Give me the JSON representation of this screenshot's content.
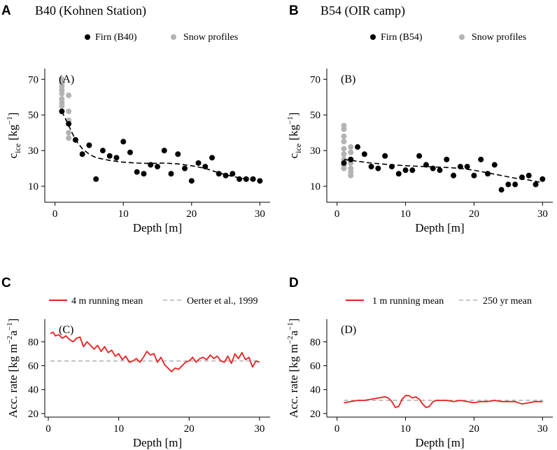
{
  "chart_data": [
    {
      "panel_letter": "A",
      "title": "B40 (Kohnen Station)",
      "panel_tag": "(A)",
      "type": "scatter",
      "legend": [
        {
          "label": "Firn (B40)",
          "color": "#000000"
        },
        {
          "label": "Snow profiles",
          "color": "#b3b3b3"
        }
      ],
      "xlabel": "Depth [m]",
      "ylabel": "c",
      "ylabel_sub": "ice",
      "ylabel_unit": "[kg",
      "ylabel_sup": "−1",
      "ylabel_close": "]",
      "xlim": [
        -1.5,
        31.5
      ],
      "ylim": [
        1,
        76
      ],
      "xticks": [
        0,
        10,
        20,
        30
      ],
      "yticks": [
        10,
        30,
        50,
        70
      ],
      "series": [
        {
          "name": "Snow profiles",
          "color": "#b3b3b3",
          "x": [
            1,
            1,
            1,
            1,
            1,
            1,
            1,
            1,
            2,
            2,
            2,
            2,
            2
          ],
          "y": [
            70,
            68,
            66,
            64,
            62,
            59,
            57,
            55,
            61,
            52,
            47,
            40,
            37
          ]
        },
        {
          "name": "Firn (B40)",
          "color": "#000000",
          "x": [
            1,
            2,
            3,
            4,
            5,
            6,
            7,
            8,
            9,
            10,
            11,
            12,
            13,
            14,
            15,
            16,
            17,
            18,
            19,
            20,
            21,
            22,
            23,
            24,
            25,
            26,
            27,
            28,
            29,
            30
          ],
          "y": [
            52,
            45,
            36,
            28,
            33,
            14,
            30,
            27,
            26,
            35,
            29,
            18,
            17,
            22,
            21,
            30,
            17,
            28,
            20,
            13,
            23,
            21,
            26,
            17,
            16,
            17,
            14,
            14,
            14,
            13
          ]
        },
        {
          "name": "Fit",
          "style": "dashed",
          "color": "#000000",
          "x": [
            1,
            2,
            3,
            4,
            5,
            6,
            8,
            10,
            12,
            14,
            16,
            18,
            20,
            22,
            24,
            26,
            28,
            30
          ],
          "y": [
            52,
            44,
            36,
            31,
            28,
            26,
            24.5,
            23.5,
            23,
            22.8,
            23,
            22.5,
            21.5,
            20,
            17.5,
            15.5,
            14,
            13
          ]
        }
      ]
    },
    {
      "panel_letter": "B",
      "title": "B54 (OIR camp)",
      "panel_tag": "(B)",
      "type": "scatter",
      "legend": [
        {
          "label": "Firn (B54)",
          "color": "#000000"
        },
        {
          "label": "Snow profiles",
          "color": "#b3b3b3"
        }
      ],
      "xlabel": "Depth [m]",
      "ylabel": "c",
      "ylabel_sub": "ice",
      "ylabel_unit": "[kg",
      "ylabel_sup": "−1",
      "ylabel_close": "]",
      "xlim": [
        -1.5,
        31.5
      ],
      "ylim": [
        1,
        76
      ],
      "xticks": [
        0,
        10,
        20,
        30
      ],
      "yticks": [
        10,
        30,
        50,
        70
      ],
      "series": [
        {
          "name": "Snow profiles",
          "color": "#b3b3b3",
          "x": [
            1,
            1,
            1,
            1,
            1,
            1,
            1,
            1,
            1,
            2,
            2,
            2,
            2,
            2,
            2,
            2
          ],
          "y": [
            44,
            42,
            38,
            35,
            31,
            28,
            25,
            22,
            20,
            32,
            29,
            25,
            23,
            20,
            18,
            16
          ]
        },
        {
          "name": "Firn (B54)",
          "color": "#000000",
          "x": [
            1,
            2,
            3,
            4,
            5,
            6,
            7,
            8,
            9,
            10,
            11,
            12,
            13,
            14,
            15,
            16,
            17,
            18,
            19,
            20,
            21,
            22,
            23,
            24,
            25,
            26,
            27,
            28,
            29,
            30
          ],
          "y": [
            23,
            25,
            32,
            28,
            21,
            20,
            27,
            21,
            17,
            19,
            19,
            27,
            22,
            20,
            19,
            25,
            16,
            21,
            21,
            16,
            25,
            17,
            22,
            8,
            11,
            11,
            15,
            16,
            11,
            14
          ]
        },
        {
          "name": "Fit",
          "style": "dashed",
          "color": "#000000",
          "x": [
            1,
            3,
            5,
            8,
            10,
            13,
            16,
            18,
            20,
            22,
            24,
            26,
            28,
            30
          ],
          "y": [
            25,
            24,
            23,
            22,
            21.5,
            21,
            20.5,
            20,
            19,
            17.5,
            16,
            14.5,
            13.5,
            12
          ]
        }
      ]
    },
    {
      "panel_letter": "C",
      "panel_tag": "(C)",
      "type": "line",
      "legend": [
        {
          "label": "4 m running mean",
          "color": "#ee1c1c",
          "style": "solid"
        },
        {
          "label": "Oerter et al., 1999",
          "color": "#b3b3b3",
          "style": "dashed"
        }
      ],
      "xlabel": "Depth [m]",
      "ylabel": "Acc. rate [kg m",
      "ylabel_sup1": "−2",
      "ylabel_mid": "a",
      "ylabel_sup2": "−1",
      "ylabel_close": "]",
      "xlim": [
        -0.5,
        31.5
      ],
      "ylim": [
        17,
        99
      ],
      "xticks": [
        0,
        10,
        20,
        30
      ],
      "yticks": [
        20,
        40,
        60,
        80
      ],
      "reference_line": 64,
      "series": [
        {
          "name": "4 m running mean",
          "color": "#ee1c1c",
          "x": [
            0.3,
            0.7,
            1.0,
            1.5,
            2.0,
            2.5,
            3.0,
            3.5,
            4.0,
            4.5,
            5.0,
            5.5,
            6.0,
            6.5,
            7.0,
            7.5,
            8.0,
            8.5,
            9.0,
            9.5,
            10.0,
            10.5,
            11.0,
            11.5,
            12.0,
            12.5,
            13.0,
            13.5,
            14.0,
            14.5,
            15.0,
            15.5,
            16.0,
            16.5,
            17.0,
            17.5,
            18.0,
            18.5,
            19.0,
            19.5,
            20.0,
            20.5,
            21.0,
            21.5,
            22.0,
            22.5,
            23.0,
            23.5,
            24.0,
            24.5,
            25.0,
            25.5,
            26.0,
            26.5,
            27.0,
            27.5,
            28.0,
            28.5,
            29.0,
            29.5,
            30.0
          ],
          "y": [
            87,
            88,
            85,
            86,
            83,
            85,
            82,
            80,
            83,
            84,
            76,
            80,
            77,
            74,
            77,
            72,
            76,
            71,
            73,
            68,
            70,
            65,
            68,
            63,
            64,
            66,
            63,
            67,
            72,
            69,
            70,
            63,
            67,
            61,
            58,
            55,
            58,
            57,
            60,
            63,
            64,
            67,
            63,
            66,
            67,
            65,
            69,
            66,
            68,
            64,
            63,
            68,
            62,
            70,
            66,
            71,
            65,
            67,
            59,
            64,
            63
          ]
        }
      ]
    },
    {
      "panel_letter": "D",
      "panel_tag": "(D)",
      "type": "line",
      "legend": [
        {
          "label": "1 m running mean",
          "color": "#ee1c1c",
          "style": "solid"
        },
        {
          "label": "250 yr mean",
          "color": "#b3b3b3",
          "style": "dashed"
        }
      ],
      "xlabel": "Depth [m]",
      "ylabel": "Acc. rate [kg m",
      "ylabel_sup1": "−2",
      "ylabel_mid": "a",
      "ylabel_sup2": "−1",
      "ylabel_close": "]",
      "xlim": [
        -1.5,
        31.5
      ],
      "ylim": [
        17,
        99
      ],
      "xticks": [
        0,
        10,
        20,
        30
      ],
      "yticks": [
        20,
        40,
        60,
        80
      ],
      "reference_line": 31,
      "series": [
        {
          "name": "1 m running mean",
          "color": "#ee1c1c",
          "x": [
            1,
            2,
            3,
            4,
            5,
            6,
            7,
            7.5,
            8,
            8.5,
            9,
            9.5,
            10,
            10.5,
            11,
            11.5,
            12,
            12.5,
            13,
            13.5,
            14,
            14.5,
            15,
            16,
            17,
            18,
            19,
            20,
            21,
            22,
            23,
            24,
            25,
            26,
            27,
            28,
            29,
            30
          ],
          "y": [
            29,
            30,
            31,
            31,
            32,
            33,
            34,
            33,
            30,
            25,
            26,
            32,
            35,
            35,
            33,
            34,
            32,
            28,
            25,
            26,
            30,
            31,
            31,
            31,
            30,
            31,
            30,
            29,
            30,
            30,
            31,
            30,
            30,
            30,
            28,
            29,
            30,
            30
          ]
        }
      ]
    }
  ]
}
